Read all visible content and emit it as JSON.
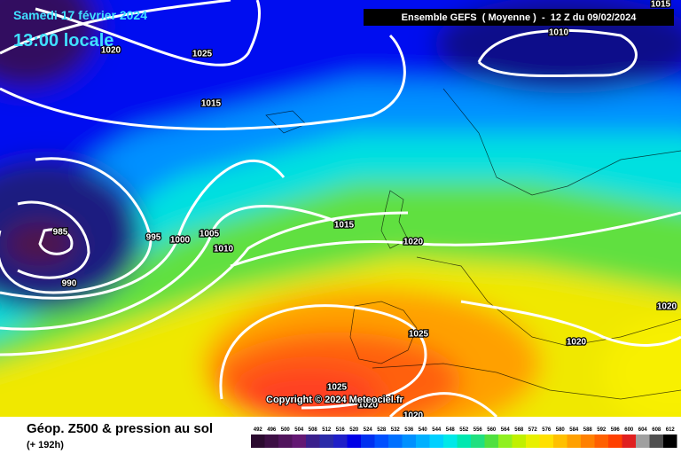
{
  "map": {
    "date": "Samedi 17 février 2024",
    "time": "13:00 locale",
    "header": "Ensemble GEFS  ( Moyenne )  -  12 Z du 09/02/2024",
    "copyright": "Copyright © 2024 Meteociel.fr",
    "isobar_labels": [
      "1015",
      "1010",
      "1020",
      "1025",
      "1015",
      "1015",
      "1020",
      "995",
      "1000",
      "1005",
      "1010",
      "985",
      "990",
      "1020",
      "1020",
      "1025",
      "1025",
      "1020",
      "1020"
    ]
  },
  "footer": {
    "title": "Géop. Z500 & pression au sol",
    "subtitle": "(+ 192h)"
  },
  "legend": [
    {
      "value": "492",
      "color": "#2b0a2f"
    },
    {
      "value": "496",
      "color": "#3d0f45"
    },
    {
      "value": "500",
      "color": "#50145c"
    },
    {
      "value": "504",
      "color": "#631873"
    },
    {
      "value": "508",
      "color": "#3a1f8c"
    },
    {
      "value": "512",
      "color": "#2a2aa8"
    },
    {
      "value": "516",
      "color": "#1f1fc8"
    },
    {
      "value": "520",
      "color": "#0000e6"
    },
    {
      "value": "524",
      "color": "#0030f0"
    },
    {
      "value": "528",
      "color": "#0050ff"
    },
    {
      "value": "532",
      "color": "#0070ff"
    },
    {
      "value": "536",
      "color": "#0090ff"
    },
    {
      "value": "540",
      "color": "#00b0ff"
    },
    {
      "value": "544",
      "color": "#00d0ff"
    },
    {
      "value": "548",
      "color": "#00e8e8"
    },
    {
      "value": "552",
      "color": "#00e8b0"
    },
    {
      "value": "556",
      "color": "#20e080"
    },
    {
      "value": "560",
      "color": "#50e040"
    },
    {
      "value": "564",
      "color": "#90f020"
    },
    {
      "value": "568",
      "color": "#c0f000"
    },
    {
      "value": "572",
      "color": "#e8f000"
    },
    {
      "value": "576",
      "color": "#ffe000"
    },
    {
      "value": "580",
      "color": "#ffc000"
    },
    {
      "value": "584",
      "color": "#ffa000"
    },
    {
      "value": "588",
      "color": "#ff8000"
    },
    {
      "value": "592",
      "color": "#ff6000"
    },
    {
      "value": "596",
      "color": "#ff4000"
    },
    {
      "value": "600",
      "color": "#e02020"
    },
    {
      "value": "604",
      "color": "#a0a0a0"
    },
    {
      "value": "608",
      "color": "#505050"
    },
    {
      "value": "612",
      "color": "#000000"
    }
  ]
}
